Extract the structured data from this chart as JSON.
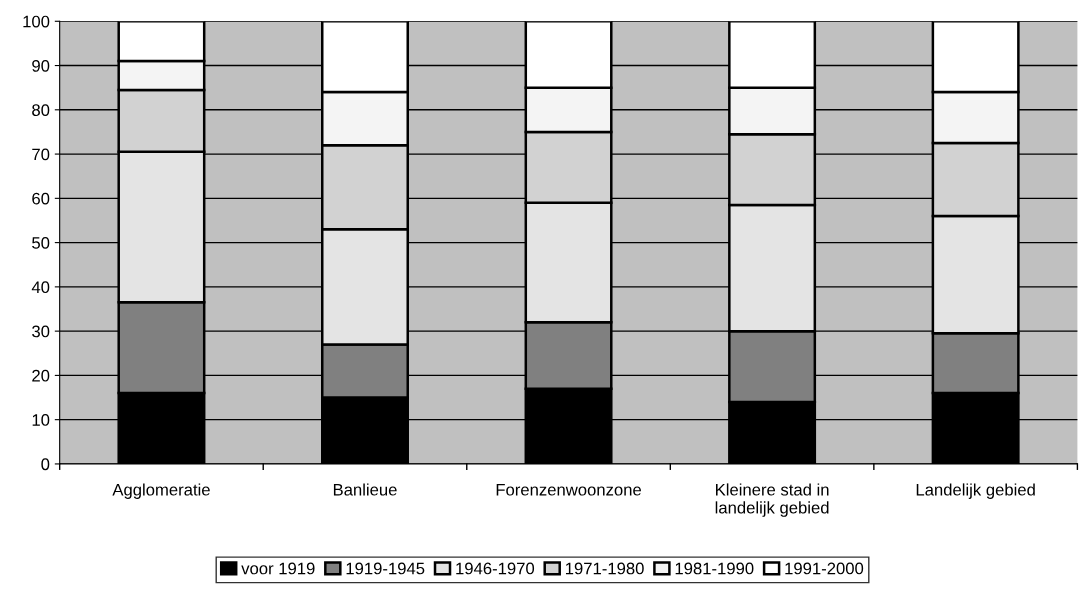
{
  "chart_data": {
    "type": "bar",
    "stacked": true,
    "categories": [
      "Agglomeratie",
      "Banlieue",
      "Forenzenwoonzone",
      "Kleinere stad in\nlandelijk gebied",
      "Landelijk gebied"
    ],
    "ylim": [
      0,
      100
    ],
    "yticks": [
      0,
      10,
      20,
      30,
      40,
      50,
      60,
      70,
      80,
      90,
      100
    ],
    "grid": "y",
    "legend": "bottom",
    "series": [
      {
        "name": "voor 1919",
        "color": "#000000",
        "values": [
          16,
          15,
          17,
          14,
          16
        ]
      },
      {
        "name": "1919-1945",
        "color": "#808080",
        "values": [
          20.5,
          12,
          15,
          16,
          13.5
        ]
      },
      {
        "name": "1946-1970",
        "color": "#e4e4e4",
        "values": [
          34,
          26,
          27,
          28.5,
          26.5
        ]
      },
      {
        "name": "1971-1980",
        "color": "#d2d2d2",
        "values": [
          14,
          19,
          16,
          16,
          16.5
        ]
      },
      {
        "name": "1981-1990",
        "color": "#f4f4f4",
        "values": [
          6.5,
          12,
          10,
          10.5,
          11.5
        ]
      },
      {
        "name": "1991-2000",
        "color": "#ffffff",
        "values": [
          9,
          16,
          15,
          15,
          16
        ]
      }
    ]
  }
}
